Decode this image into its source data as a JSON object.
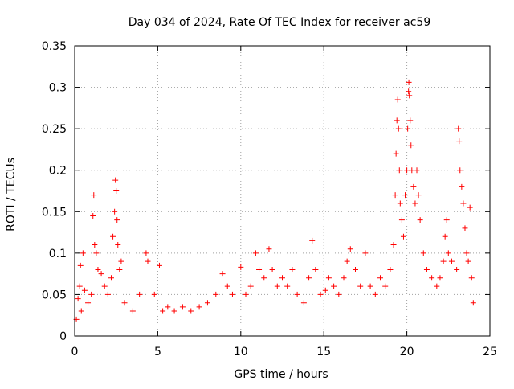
{
  "chart_data": {
    "type": "scatter",
    "title": "Day 034 of 2024, Rate Of TEC Index for receiver ac59",
    "xlabel": "GPS time / hours",
    "ylabel": "ROTI / TECUs",
    "xlim": [
      0,
      25
    ],
    "ylim": [
      0,
      0.35
    ],
    "x_ticks": [
      0,
      5,
      10,
      15,
      20,
      25
    ],
    "x_tick_labels": [
      "0",
      "5",
      "10",
      "15",
      "20",
      "25"
    ],
    "y_ticks": [
      0,
      0.05,
      0.1,
      0.15,
      0.2,
      0.25,
      0.3,
      0.35
    ],
    "y_tick_labels": [
      "0",
      "0.05",
      "0.1",
      "0.15",
      "0.2",
      "0.25",
      "0.3",
      "0.35"
    ],
    "grid": true,
    "marker": "+",
    "color": "#ff0000",
    "series": [
      {
        "points": [
          [
            0.1,
            0.02
          ],
          [
            0.2,
            0.045
          ],
          [
            0.3,
            0.06
          ],
          [
            0.35,
            0.085
          ],
          [
            0.4,
            0.03
          ],
          [
            0.5,
            0.1
          ],
          [
            0.6,
            0.055
          ],
          [
            0.8,
            0.04
          ],
          [
            1.0,
            0.05
          ],
          [
            1.1,
            0.145
          ],
          [
            1.15,
            0.17
          ],
          [
            1.2,
            0.11
          ],
          [
            1.3,
            0.1
          ],
          [
            1.4,
            0.08
          ],
          [
            1.6,
            0.075
          ],
          [
            1.8,
            0.06
          ],
          [
            2.0,
            0.05
          ],
          [
            2.2,
            0.07
          ],
          [
            2.3,
            0.12
          ],
          [
            2.4,
            0.15
          ],
          [
            2.45,
            0.188
          ],
          [
            2.5,
            0.175
          ],
          [
            2.55,
            0.14
          ],
          [
            2.6,
            0.11
          ],
          [
            2.7,
            0.08
          ],
          [
            2.8,
            0.09
          ],
          [
            3.0,
            0.04
          ],
          [
            3.5,
            0.03
          ],
          [
            3.9,
            0.05
          ],
          [
            4.3,
            0.1
          ],
          [
            4.4,
            0.09
          ],
          [
            4.8,
            0.05
          ],
          [
            5.1,
            0.085
          ],
          [
            5.3,
            0.03
          ],
          [
            5.6,
            0.035
          ],
          [
            6.0,
            0.03
          ],
          [
            6.5,
            0.035
          ],
          [
            7.0,
            0.03
          ],
          [
            7.5,
            0.035
          ],
          [
            8.0,
            0.04
          ],
          [
            8.5,
            0.05
          ],
          [
            8.9,
            0.075
          ],
          [
            9.2,
            0.06
          ],
          [
            9.5,
            0.05
          ],
          [
            10.0,
            0.083
          ],
          [
            10.3,
            0.05
          ],
          [
            10.6,
            0.06
          ],
          [
            10.9,
            0.1
          ],
          [
            11.1,
            0.08
          ],
          [
            11.4,
            0.07
          ],
          [
            11.7,
            0.105
          ],
          [
            11.9,
            0.08
          ],
          [
            12.2,
            0.06
          ],
          [
            12.5,
            0.07
          ],
          [
            12.8,
            0.06
          ],
          [
            13.1,
            0.08
          ],
          [
            13.4,
            0.05
          ],
          [
            13.8,
            0.04
          ],
          [
            14.1,
            0.07
          ],
          [
            14.3,
            0.115
          ],
          [
            14.5,
            0.08
          ],
          [
            14.8,
            0.05
          ],
          [
            15.1,
            0.055
          ],
          [
            15.3,
            0.07
          ],
          [
            15.6,
            0.06
          ],
          [
            15.9,
            0.05
          ],
          [
            16.2,
            0.07
          ],
          [
            16.4,
            0.09
          ],
          [
            16.6,
            0.105
          ],
          [
            16.9,
            0.08
          ],
          [
            17.2,
            0.06
          ],
          [
            17.5,
            0.1
          ],
          [
            17.8,
            0.06
          ],
          [
            18.1,
            0.05
          ],
          [
            18.4,
            0.07
          ],
          [
            18.7,
            0.06
          ],
          [
            19.0,
            0.08
          ],
          [
            19.2,
            0.11
          ],
          [
            19.3,
            0.17
          ],
          [
            19.35,
            0.22
          ],
          [
            19.4,
            0.26
          ],
          [
            19.45,
            0.285
          ],
          [
            19.5,
            0.25
          ],
          [
            19.55,
            0.2
          ],
          [
            19.6,
            0.16
          ],
          [
            19.7,
            0.14
          ],
          [
            19.8,
            0.12
          ],
          [
            19.9,
            0.17
          ],
          [
            20.0,
            0.2
          ],
          [
            20.05,
            0.25
          ],
          [
            20.1,
            0.295
          ],
          [
            20.12,
            0.306
          ],
          [
            20.15,
            0.29
          ],
          [
            20.2,
            0.26
          ],
          [
            20.25,
            0.23
          ],
          [
            20.3,
            0.2
          ],
          [
            20.4,
            0.18
          ],
          [
            20.5,
            0.16
          ],
          [
            20.6,
            0.2
          ],
          [
            20.7,
            0.17
          ],
          [
            20.8,
            0.14
          ],
          [
            21.0,
            0.1
          ],
          [
            21.2,
            0.08
          ],
          [
            21.5,
            0.07
          ],
          [
            21.8,
            0.06
          ],
          [
            22.0,
            0.07
          ],
          [
            22.2,
            0.09
          ],
          [
            22.3,
            0.12
          ],
          [
            22.4,
            0.14
          ],
          [
            22.5,
            0.1
          ],
          [
            22.7,
            0.09
          ],
          [
            23.0,
            0.08
          ],
          [
            23.1,
            0.25
          ],
          [
            23.15,
            0.235
          ],
          [
            23.2,
            0.2
          ],
          [
            23.3,
            0.18
          ],
          [
            23.4,
            0.16
          ],
          [
            23.5,
            0.13
          ],
          [
            23.6,
            0.1
          ],
          [
            23.7,
            0.09
          ],
          [
            23.8,
            0.155
          ],
          [
            23.9,
            0.07
          ],
          [
            24.0,
            0.04
          ]
        ]
      }
    ]
  }
}
